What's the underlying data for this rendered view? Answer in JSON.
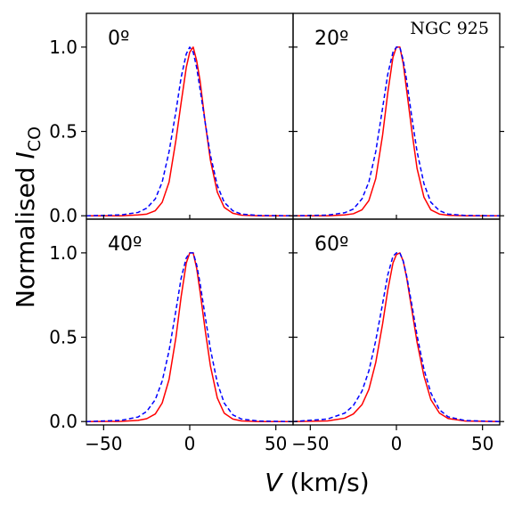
{
  "figure": {
    "galaxy": "NGC 925",
    "ylabel": {
      "main": "Normalised ",
      "italic": "I",
      "sub": "CO"
    },
    "xlabel": {
      "italic": "V",
      "rest": " (km/s)"
    }
  },
  "chart_data": {
    "type": "line",
    "xlim": [
      -60,
      60
    ],
    "ylim": [
      -0.02,
      1.2
    ],
    "x_ticks": [
      -50,
      0,
      50
    ],
    "x_tick_labels": [
      "−50",
      "0",
      "50"
    ],
    "y_ticks": [
      0.0,
      0.5,
      1.0
    ],
    "y_tick_labels": [
      "0.0",
      "0.5",
      "1.0"
    ],
    "xlabel": "V (km/s)",
    "ylabel": "Normalised I_CO",
    "grid": false,
    "line_styles": {
      "red": {
        "color": "#ff0000",
        "style": "solid"
      },
      "blue": {
        "color": "#0000ff",
        "style": "dashed"
      }
    },
    "panels": [
      {
        "label": "0º",
        "red": {
          "x": [
            -60,
            -40,
            -30,
            -25,
            -20,
            -16,
            -12,
            -8,
            -5,
            -2,
            0,
            2,
            4,
            6,
            9,
            12,
            16,
            20,
            25,
            30,
            40,
            60
          ],
          "y": [
            0,
            0,
            0.005,
            0.01,
            0.03,
            0.08,
            0.2,
            0.45,
            0.67,
            0.88,
            0.97,
            1.0,
            0.92,
            0.8,
            0.55,
            0.33,
            0.14,
            0.05,
            0.015,
            0.004,
            0,
            0
          ]
        },
        "blue": {
          "x": [
            -60,
            -40,
            -30,
            -25,
            -20,
            -16,
            -12,
            -8,
            -5,
            -2,
            0,
            2,
            4,
            6,
            9,
            12,
            16,
            20,
            25,
            30,
            40,
            60
          ],
          "y": [
            0,
            0.005,
            0.02,
            0.045,
            0.1,
            0.2,
            0.38,
            0.62,
            0.82,
            0.96,
            1.0,
            0.97,
            0.88,
            0.75,
            0.55,
            0.36,
            0.18,
            0.08,
            0.03,
            0.01,
            0.002,
            0
          ]
        }
      },
      {
        "label": "20º",
        "red": {
          "x": [
            -60,
            -40,
            -30,
            -25,
            -20,
            -16,
            -12,
            -8,
            -5,
            -2,
            0,
            2,
            4,
            6,
            9,
            12,
            16,
            20,
            25,
            30,
            40,
            60
          ],
          "y": [
            0,
            0,
            0.005,
            0.012,
            0.035,
            0.09,
            0.22,
            0.48,
            0.73,
            0.94,
            1.0,
            1.0,
            0.9,
            0.74,
            0.5,
            0.28,
            0.11,
            0.035,
            0.01,
            0.003,
            0,
            0
          ]
        },
        "blue": {
          "x": [
            -60,
            -40,
            -30,
            -25,
            -20,
            -16,
            -12,
            -8,
            -5,
            -2,
            0,
            2,
            4,
            6,
            9,
            12,
            16,
            20,
            25,
            30,
            40,
            60
          ],
          "y": [
            0,
            0.004,
            0.018,
            0.04,
            0.1,
            0.2,
            0.38,
            0.64,
            0.84,
            0.97,
            1.0,
            1.0,
            0.92,
            0.8,
            0.58,
            0.38,
            0.19,
            0.08,
            0.03,
            0.01,
            0.002,
            0
          ]
        }
      },
      {
        "label": "40º",
        "red": {
          "x": [
            -60,
            -40,
            -30,
            -25,
            -20,
            -16,
            -12,
            -8,
            -5,
            -2,
            0,
            2,
            4,
            6,
            9,
            12,
            16,
            20,
            25,
            30,
            40,
            60
          ],
          "y": [
            0,
            0.001,
            0.007,
            0.017,
            0.045,
            0.11,
            0.25,
            0.5,
            0.74,
            0.94,
            1.0,
            1.0,
            0.91,
            0.77,
            0.54,
            0.33,
            0.14,
            0.05,
            0.015,
            0.004,
            0,
            0
          ]
        },
        "blue": {
          "x": [
            -60,
            -40,
            -30,
            -25,
            -20,
            -16,
            -12,
            -8,
            -5,
            -2,
            0,
            2,
            4,
            6,
            9,
            12,
            16,
            20,
            25,
            30,
            40,
            60
          ],
          "y": [
            0,
            0.007,
            0.027,
            0.06,
            0.13,
            0.24,
            0.42,
            0.66,
            0.85,
            0.97,
            1.0,
            1.0,
            0.93,
            0.82,
            0.62,
            0.43,
            0.23,
            0.11,
            0.04,
            0.015,
            0.003,
            0
          ]
        }
      },
      {
        "label": "60º",
        "red": {
          "x": [
            -60,
            -40,
            -30,
            -25,
            -20,
            -16,
            -12,
            -8,
            -5,
            -2,
            0,
            2,
            4,
            6,
            9,
            12,
            16,
            20,
            25,
            30,
            40,
            60
          ],
          "y": [
            0,
            0.004,
            0.02,
            0.045,
            0.1,
            0.19,
            0.35,
            0.58,
            0.78,
            0.94,
            0.99,
            1.0,
            0.95,
            0.85,
            0.66,
            0.47,
            0.27,
            0.13,
            0.05,
            0.018,
            0.003,
            0
          ]
        },
        "blue": {
          "x": [
            -60,
            -40,
            -30,
            -25,
            -20,
            -16,
            -12,
            -8,
            -5,
            -2,
            0,
            2,
            4,
            6,
            9,
            12,
            16,
            20,
            25,
            30,
            40,
            60
          ],
          "y": [
            0,
            0.015,
            0.05,
            0.095,
            0.18,
            0.3,
            0.48,
            0.7,
            0.87,
            0.98,
            1.0,
            1.0,
            0.95,
            0.86,
            0.69,
            0.51,
            0.31,
            0.17,
            0.07,
            0.028,
            0.006,
            0
          ]
        }
      }
    ]
  }
}
